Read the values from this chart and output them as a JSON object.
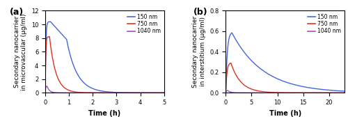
{
  "panel_a": {
    "title": "(a)",
    "xlabel": "Time (h)",
    "ylabel": "Secondary nanocarrier\nin microvascular (μg/ml)",
    "xlim": [
      0,
      5
    ],
    "ylim": [
      0,
      12
    ],
    "yticks": [
      0,
      2,
      4,
      6,
      8,
      10,
      12
    ],
    "xticks": [
      0,
      1,
      2,
      3,
      4,
      5
    ],
    "blue": {
      "color": "#4466dd",
      "label": "150 nm",
      "peak_time": 0.22,
      "peak_val": 10.4,
      "shoulder_time": 0.9,
      "shoulder_val": 7.8,
      "fall_rate2": 2.3
    },
    "red": {
      "color": "#dd3322",
      "label": "750 nm",
      "peak_time": 0.18,
      "peak_val": 8.2,
      "fall_rate": 3.8
    },
    "purple": {
      "color": "#9955bb",
      "label": "1040 nm",
      "peak_time": 0.08,
      "peak_val": 0.95,
      "fall_rate": 10.0
    }
  },
  "panel_b": {
    "title": "(b)",
    "xlabel": "Time (h)",
    "ylabel": "Secondary nanocarrier\nin interstitium (μg/ml)",
    "xlim": [
      0,
      23
    ],
    "ylim": [
      0,
      0.8
    ],
    "yticks": [
      0.0,
      0.2,
      0.4,
      0.6,
      0.8
    ],
    "xticks": [
      0,
      5,
      10,
      15,
      20
    ],
    "blue": {
      "color": "#4466dd",
      "label": "150 nm",
      "peak_time": 1.2,
      "peak_val": 0.585,
      "rise_k": 3.5,
      "fall_rate": 0.165
    },
    "red": {
      "color": "#dd3322",
      "label": "750 nm",
      "peak_time": 1.0,
      "peak_val": 0.29,
      "rise_k": 4.5,
      "fall_rate": 0.52
    },
    "purple": {
      "color": "#9955bb",
      "label": "1040 nm",
      "peak_time": 0.4,
      "peak_val": 0.022,
      "rise_k": 12.0,
      "fall_rate": 2.0
    }
  },
  "legend_labels": [
    "150 nm",
    "750 nm",
    "1040 nm"
  ],
  "legend_colors": [
    "#4466dd",
    "#dd3322",
    "#9955bb"
  ],
  "fontsize": 7,
  "label_fontsize": 6.5,
  "tick_fontsize": 6
}
